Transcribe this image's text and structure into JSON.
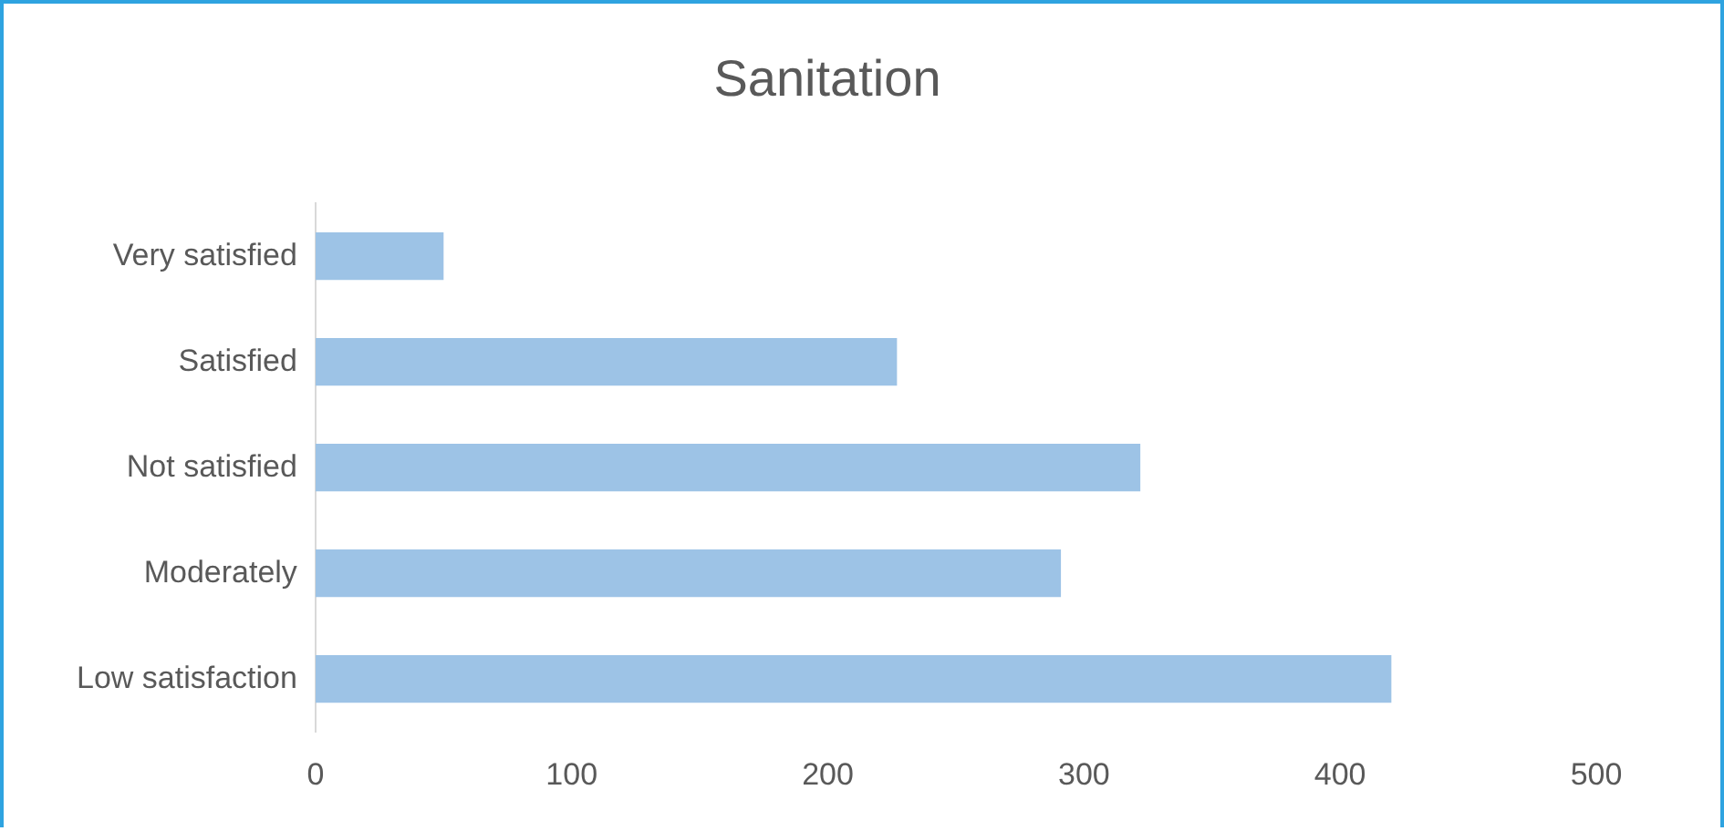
{
  "chart_data": {
    "type": "bar",
    "orientation": "horizontal",
    "title": "Sanitation",
    "categories": [
      "Very satisfied",
      "Satisfied",
      "Not satisfied",
      "Moderately",
      "Low satisfaction"
    ],
    "values": [
      50,
      227,
      322,
      291,
      420
    ],
    "color": "#9dc3e6",
    "xlim": [
      0,
      500
    ],
    "xticks": [
      0,
      100,
      200,
      300,
      400,
      500
    ],
    "grid": false,
    "legend": false
  }
}
